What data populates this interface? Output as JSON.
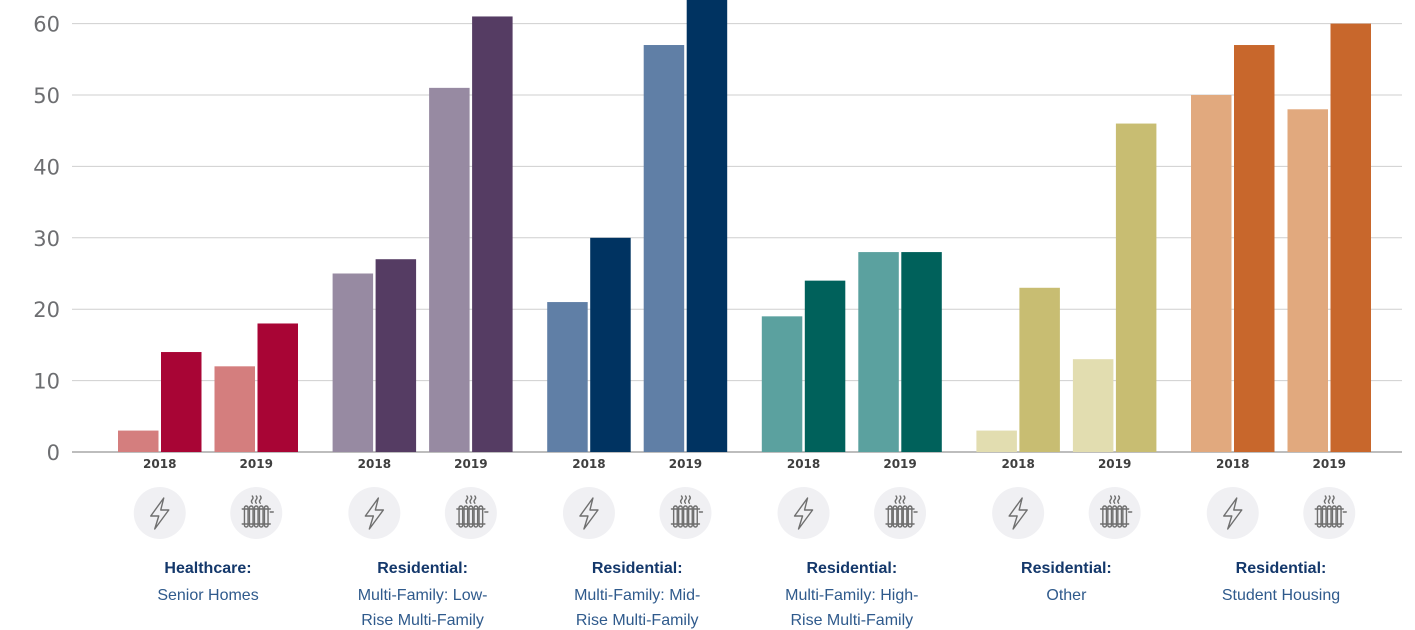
{
  "chart_data": {
    "type": "bar",
    "title": "",
    "xlabel": "",
    "ylabel": "",
    "ylim": [
      0,
      60
    ],
    "yticks": [
      0,
      10,
      20,
      30,
      40,
      50,
      60
    ],
    "grid": true,
    "legend": "none",
    "icons": {
      "electricity": "lightning-bolt-icon",
      "heating": "radiator-icon"
    },
    "groups": [
      {
        "title": "Healthcare:",
        "subtitle": [
          "Senior Homes"
        ],
        "colors": {
          "light": "#d47e7e",
          "dark": "#a80535"
        },
        "years": [
          {
            "label": "2018",
            "values": [
              3,
              14
            ]
          },
          {
            "label": "2019",
            "values": [
              12,
              18
            ]
          }
        ]
      },
      {
        "title": "Residential:",
        "subtitle": [
          "Multi-Family: Low-",
          "Rise Multi-Family"
        ],
        "colors": {
          "light": "#978aa2",
          "dark": "#553c63"
        },
        "years": [
          {
            "label": "2018",
            "values": [
              25,
              27
            ]
          },
          {
            "label": "2019",
            "values": [
              51,
              61
            ]
          }
        ]
      },
      {
        "title": "Residential:",
        "subtitle": [
          "Multi-Family: Mid-",
          "Rise Multi-Family"
        ],
        "colors": {
          "light": "#607fa6",
          "dark": "#003361"
        },
        "years": [
          {
            "label": "2018",
            "values": [
              21,
              30
            ]
          },
          {
            "label": "2019",
            "values": [
              57,
              64
            ]
          }
        ]
      },
      {
        "title": "Residential:",
        "subtitle": [
          "Multi-Family: High-",
          "Rise Multi-Family"
        ],
        "colors": {
          "light": "#5ba19f",
          "dark": "#00615b"
        },
        "years": [
          {
            "label": "2018",
            "values": [
              19,
              24
            ]
          },
          {
            "label": "2019",
            "values": [
              28,
              28
            ]
          }
        ]
      },
      {
        "title": "Residential:",
        "subtitle": [
          "Other"
        ],
        "colors": {
          "light": "#e2ddb0",
          "dark": "#c8bd72"
        },
        "years": [
          {
            "label": "2018",
            "values": [
              3,
              23
            ]
          },
          {
            "label": "2019",
            "values": [
              13,
              46
            ]
          }
        ]
      },
      {
        "title": "Residential:",
        "subtitle": [
          "Student Housing"
        ],
        "colors": {
          "light": "#e1a97e",
          "dark": "#c8672c"
        },
        "years": [
          {
            "label": "2018",
            "values": [
              50,
              57
            ]
          },
          {
            "label": "2019",
            "values": [
              48,
              60
            ]
          }
        ]
      }
    ]
  }
}
